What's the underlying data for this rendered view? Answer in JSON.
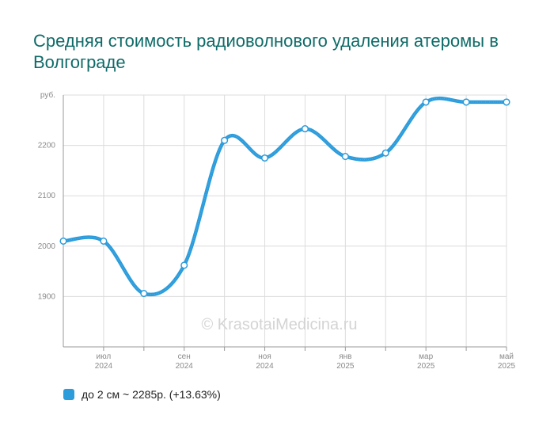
{
  "title": "Средняя стоимость радиоволнового удаления атеромы в Волгограде",
  "watermark": "© KrasotaiMedicina.ru",
  "colors": {
    "series": "#2d9cdb",
    "title": "#0e6b68",
    "grid": "#dcdcdc",
    "axis": "#999999",
    "tick_text": "#8a8a8a"
  },
  "chart_data": {
    "type": "line",
    "ylabel": "руб.",
    "yticks": [
      1900,
      2000,
      2100,
      2200
    ],
    "ylim": [
      1800,
      2300
    ],
    "grid": true,
    "legend_position": "bottom-left",
    "x_tick_labels": [
      {
        "index": 1,
        "month": "июл",
        "year": "2024"
      },
      {
        "index": 3,
        "month": "сен",
        "year": "2024"
      },
      {
        "index": 5,
        "month": "ноя",
        "year": "2024"
      },
      {
        "index": 7,
        "month": "янв",
        "year": "2025"
      },
      {
        "index": 9,
        "month": "мар",
        "year": "2025"
      },
      {
        "index": 11,
        "month": "май",
        "year": "2025"
      }
    ],
    "x": [
      "2024-06",
      "2024-07",
      "2024-08",
      "2024-09",
      "2024-10",
      "2024-11",
      "2024-12",
      "2025-01",
      "2025-02",
      "2025-03",
      "2025-04",
      "2025-05"
    ],
    "series": [
      {
        "name": "до 2 см",
        "legend_text": "до 2 см ~ 2285р. (+13.63%)",
        "values": [
          2010,
          2010,
          1906,
          1962,
          2210,
          2175,
          2233,
          2178,
          2185,
          2286,
          2286,
          2286
        ]
      }
    ]
  }
}
